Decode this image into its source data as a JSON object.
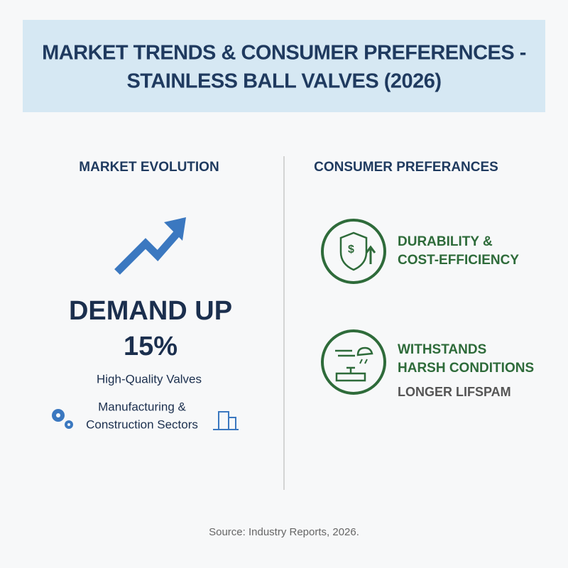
{
  "header": {
    "title_lines": [
      "MARKET TRENDS & CONSUMER PREFERENCES -",
      "STAINLESS BALL VALVES (2026)"
    ]
  },
  "market_evolution": {
    "heading": "MARKET EVOLUTION",
    "headline": "DEMAND UP",
    "figure": "15%",
    "subject": "High-Quality Valves",
    "sectors_lines": [
      "Manufacturing &",
      "Construction Sectors"
    ]
  },
  "consumer_preferences": {
    "heading": "CONSUMER PREFERANCES",
    "items": [
      {
        "lines": [
          "DURABILITY &",
          "COST-EFFICIENCY"
        ]
      },
      {
        "lines": [
          "WITHSTANDS",
          "HARSH CONDITIONS"
        ],
        "note": "LONGER LIFSPAM"
      }
    ]
  },
  "footer": {
    "source": "Source: Industry Reports, 2026."
  }
}
